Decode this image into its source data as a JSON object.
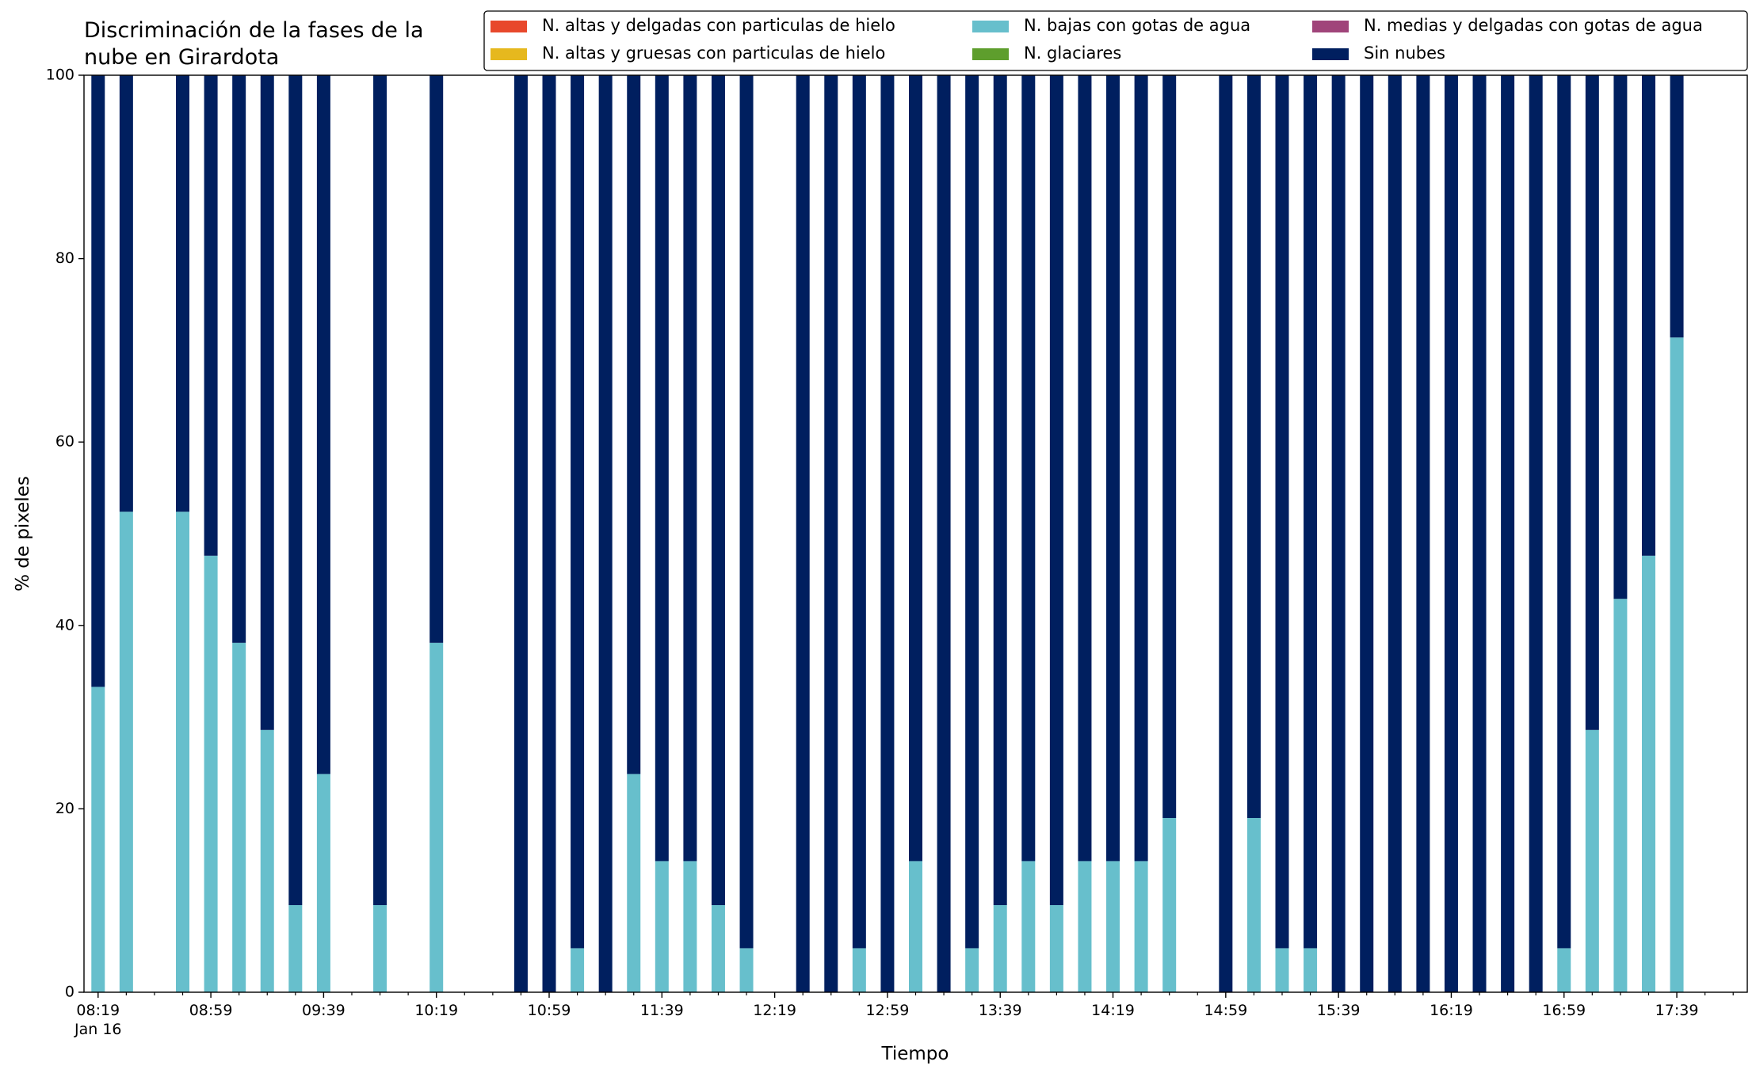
{
  "chart_data": {
    "type": "stacked_bar",
    "title": "Discriminación de la fases de la\nnube en Girardota",
    "xlabel": "Tiempo",
    "ylabel": "% de pixeles",
    "x": [
      "08:19",
      "08:29",
      "08:49",
      "08:59",
      "09:09",
      "09:19",
      "09:29",
      "09:39",
      "09:59",
      "10:19",
      "10:49",
      "10:59",
      "11:09",
      "11:19",
      "11:29",
      "11:39",
      "11:49",
      "11:59",
      "12:09",
      "12:29",
      "12:39",
      "12:49",
      "12:59",
      "13:09",
      "13:19",
      "13:29",
      "13:39",
      "13:49",
      "13:59",
      "14:09",
      "14:19",
      "14:29",
      "14:39",
      "14:59",
      "15:09",
      "15:19",
      "15:29",
      "15:39",
      "15:49",
      "15:59",
      "16:09",
      "16:19",
      "16:29",
      "16:39",
      "16:49",
      "16:59",
      "17:09",
      "17:19",
      "17:29",
      "17:39"
    ],
    "series": [
      {
        "name": "N. altas y delgadas con particulas de hielo",
        "color": "#e8482c",
        "values": [
          0,
          0,
          0,
          0,
          0,
          0,
          0,
          0,
          0,
          0,
          0,
          0,
          0,
          0,
          0,
          0,
          0,
          0,
          0,
          0,
          0,
          0,
          0,
          0,
          0,
          0,
          0,
          0,
          0,
          0,
          0,
          0,
          0,
          0,
          0,
          0,
          0,
          0,
          0,
          0,
          0,
          0,
          0,
          0,
          0,
          0,
          0,
          0,
          0,
          0
        ]
      },
      {
        "name": "N. altas y gruesas con particulas de hielo",
        "color": "#e6b81e",
        "values": [
          0,
          0,
          0,
          0,
          0,
          0,
          0,
          0,
          0,
          0,
          0,
          0,
          0,
          0,
          0,
          0,
          0,
          0,
          0,
          0,
          0,
          0,
          0,
          0,
          0,
          0,
          0,
          0,
          0,
          0,
          0,
          0,
          0,
          0,
          0,
          0,
          0,
          0,
          0,
          0,
          0,
          0,
          0,
          0,
          0,
          0,
          0,
          0,
          0,
          0
        ]
      },
      {
        "name": "N. bajas con gotas de agua",
        "color": "#67bfcc",
        "values": [
          33.3,
          52.4,
          52.4,
          47.6,
          38.1,
          28.6,
          9.5,
          23.8,
          9.5,
          38.1,
          0,
          0,
          4.8,
          0,
          23.8,
          14.3,
          14.3,
          9.5,
          4.8,
          0,
          0,
          4.8,
          0,
          14.3,
          0,
          4.8,
          9.5,
          14.3,
          9.5,
          14.3,
          14.3,
          14.3,
          19.0,
          0,
          19.0,
          4.8,
          4.8,
          0,
          0,
          0,
          0,
          0,
          0,
          0,
          0,
          4.8,
          28.6,
          42.9,
          47.6,
          71.4
        ]
      },
      {
        "name": "N. glaciares",
        "color": "#5e9e2d",
        "values": [
          0,
          0,
          0,
          0,
          0,
          0,
          0,
          0,
          0,
          0,
          0,
          0,
          0,
          0,
          0,
          0,
          0,
          0,
          0,
          0,
          0,
          0,
          0,
          0,
          0,
          0,
          0,
          0,
          0,
          0,
          0,
          0,
          0,
          0,
          0,
          0,
          0,
          0,
          0,
          0,
          0,
          0,
          0,
          0,
          0,
          0,
          0,
          0,
          0,
          0
        ]
      },
      {
        "name": "N. medias y delgadas con gotas de agua",
        "color": "#a0447a",
        "values": [
          0,
          0,
          0,
          0,
          0,
          0,
          0,
          0,
          0,
          0,
          0,
          0,
          0,
          0,
          0,
          0,
          0,
          0,
          0,
          0,
          0,
          0,
          0,
          0,
          0,
          0,
          0,
          0,
          0,
          0,
          0,
          0,
          0,
          0,
          0,
          0,
          0,
          0,
          0,
          0,
          0,
          0,
          0,
          0,
          0,
          0,
          0,
          0,
          0,
          0
        ]
      },
      {
        "name": "Sin nubes",
        "color": "#001f5f",
        "values": [
          66.7,
          47.6,
          47.6,
          52.4,
          61.9,
          71.4,
          90.5,
          76.2,
          90.5,
          61.9,
          100,
          100,
          95.2,
          100,
          76.2,
          85.7,
          85.7,
          90.5,
          95.2,
          100,
          100,
          95.2,
          100,
          85.7,
          100,
          95.2,
          90.5,
          85.7,
          90.5,
          85.7,
          85.7,
          85.7,
          81.0,
          100,
          81.0,
          95.2,
          95.2,
          100,
          100,
          100,
          100,
          100,
          100,
          100,
          100,
          95.2,
          71.4,
          57.1,
          52.4,
          28.6
        ]
      }
    ],
    "xlim": [
      "08:14",
      "18:04"
    ],
    "xticks": [
      "08:19",
      "08:59",
      "09:39",
      "10:19",
      "10:59",
      "11:39",
      "12:19",
      "12:59",
      "13:39",
      "14:19",
      "14:59",
      "15:39",
      "16:19",
      "16:59",
      "17:39"
    ],
    "xticks_minor": [
      "08:29",
      "08:39",
      "08:49",
      "09:09",
      "09:19",
      "09:29",
      "09:49",
      "09:59",
      "10:09",
      "10:29",
      "10:39",
      "10:49",
      "11:09",
      "11:19",
      "11:29",
      "11:49",
      "11:59",
      "12:09",
      "12:29",
      "12:39",
      "12:49",
      "13:09",
      "13:19",
      "13:29",
      "13:49",
      "13:59",
      "14:09",
      "14:29",
      "14:39",
      "14:49",
      "15:09",
      "15:19",
      "15:29",
      "15:49",
      "15:59",
      "16:09",
      "16:29",
      "16:39",
      "16:49",
      "17:09",
      "17:19",
      "17:29",
      "17:49",
      "17:59"
    ],
    "date_label": "Jan 16",
    "ylim": [
      0,
      100
    ],
    "yticks": [
      0,
      20,
      40,
      60,
      80,
      100
    ],
    "legend": "upper right"
  }
}
